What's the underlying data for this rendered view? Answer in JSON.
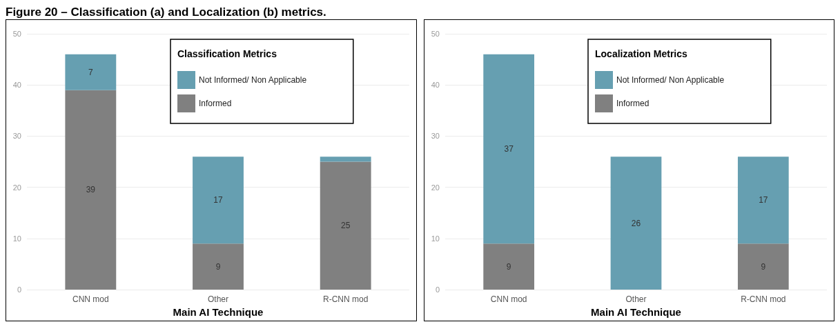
{
  "chart_data": [
    {
      "type": "bar",
      "title": "Figure 20 – Classification (a) and Localization (b) metrics.",
      "legend_title": "Classification Metrics",
      "xlabel": "Main AI Technique",
      "categories": [
        "CNN mod",
        "Other",
        "R-CNN mod"
      ],
      "stacked": true,
      "series": [
        {
          "name": "Informed",
          "color": "#808080",
          "values": [
            39,
            9,
            25
          ],
          "value_labels": [
            "39",
            "9",
            "25"
          ]
        },
        {
          "name": "Not Informed/ Non Applicable",
          "color": "#669fb1",
          "values": [
            7,
            17,
            1
          ],
          "value_labels": [
            "7",
            "17",
            null
          ]
        }
      ],
      "ylim": [
        0,
        50
      ],
      "yticks": [
        0,
        10,
        20,
        30,
        40,
        50
      ],
      "grid": "y",
      "legend": "top right"
    },
    {
      "type": "bar",
      "legend_title": "Localization Metrics",
      "xlabel": "Main AI Technique",
      "categories": [
        "CNN mod",
        "Other",
        "R-CNN mod"
      ],
      "stacked": true,
      "series": [
        {
          "name": "Informed",
          "color": "#808080",
          "values": [
            9,
            0,
            9
          ],
          "value_labels": [
            "9",
            null,
            "9"
          ]
        },
        {
          "name": "Not Informed/ Non Applicable",
          "color": "#669fb1",
          "values": [
            37,
            26,
            17
          ],
          "value_labels": [
            "37",
            "26",
            "17"
          ]
        }
      ],
      "ylim": [
        0,
        50
      ],
      "yticks": [
        0,
        10,
        20,
        30,
        40,
        50
      ],
      "grid": "y",
      "legend": "top right"
    }
  ]
}
